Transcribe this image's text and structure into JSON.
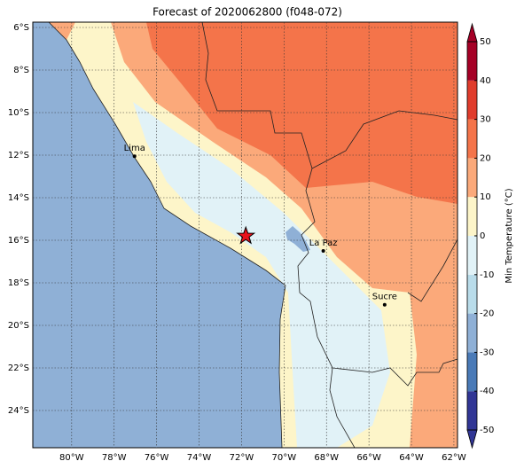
{
  "title": "Forecast of 2020062800 (f048-072)",
  "map": {
    "lonlim": [
      -81.83,
      -61.83
    ],
    "latlim": [
      -25.75,
      -5.75
    ],
    "lonticks": [
      {
        "value": -80,
        "label": "80°W"
      },
      {
        "value": -78,
        "label": "78°W"
      },
      {
        "value": -76,
        "label": "76°W"
      },
      {
        "value": -74,
        "label": "74°W"
      },
      {
        "value": -72,
        "label": "72°W"
      },
      {
        "value": -70,
        "label": "70°W"
      },
      {
        "value": -68,
        "label": "68°W"
      },
      {
        "value": -66,
        "label": "66°W"
      },
      {
        "value": -64,
        "label": "64°W"
      },
      {
        "value": -62,
        "label": "62°W"
      }
    ],
    "latticks": [
      {
        "value": -6,
        "label": "6°S"
      },
      {
        "value": -8,
        "label": "8°S"
      },
      {
        "value": -10,
        "label": "10°S"
      },
      {
        "value": -12,
        "label": "12°S"
      },
      {
        "value": -14,
        "label": "14°S"
      },
      {
        "value": -16,
        "label": "16°S"
      },
      {
        "value": -18,
        "label": "18°S"
      },
      {
        "value": -20,
        "label": "20°S"
      },
      {
        "value": -22,
        "label": "22°S"
      },
      {
        "value": -24,
        "label": "24°S"
      }
    ],
    "places": [
      {
        "name": "Lima",
        "lon": -77.04,
        "lat": -12.05
      },
      {
        "name": "La Paz",
        "lon": -68.15,
        "lat": -16.5
      },
      {
        "name": "Sucre",
        "lon": -65.26,
        "lat": -19.03
      }
    ],
    "marker": {
      "lon": -71.8,
      "lat": -15.8
    }
  },
  "colorbar": {
    "label": "Min Temperature (°C)",
    "ticks": [
      -50,
      -40,
      -30,
      -20,
      -10,
      0,
      10,
      20,
      30,
      40,
      50
    ],
    "colors": [
      "#313695",
      "#4a7ab7",
      "#8fb0d6",
      "#b9dcea",
      "#e1f2f7",
      "#fdf5c9",
      "#fba97a",
      "#f4744a",
      "#e03c2c",
      "#a50026"
    ]
  }
}
